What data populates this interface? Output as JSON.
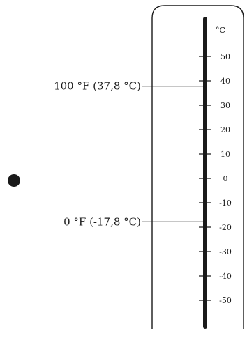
{
  "thermometer": {
    "unit_label": "°C",
    "scale": [
      {
        "label": "50",
        "value": 50
      },
      {
        "label": "40",
        "value": 40
      },
      {
        "label": "30",
        "value": 30
      },
      {
        "label": "20",
        "value": 20
      },
      {
        "label": "10",
        "value": 10
      },
      {
        "label": "0",
        "value": 0
      },
      {
        "label": "-10",
        "value": -10
      },
      {
        "label": "-20",
        "value": -20
      },
      {
        "label": "-30",
        "value": -30
      },
      {
        "label": "-40",
        "value": -40
      },
      {
        "label": "-50",
        "value": -50
      }
    ]
  },
  "callouts": [
    {
      "label": "100 °F (37,8 °C)",
      "value_c": 37.8
    },
    {
      "label": "0 °F (-17,8 °C)",
      "value_c": -17.8
    }
  ],
  "colors": {
    "ink": "#1a1a1a",
    "background": "#ffffff"
  }
}
